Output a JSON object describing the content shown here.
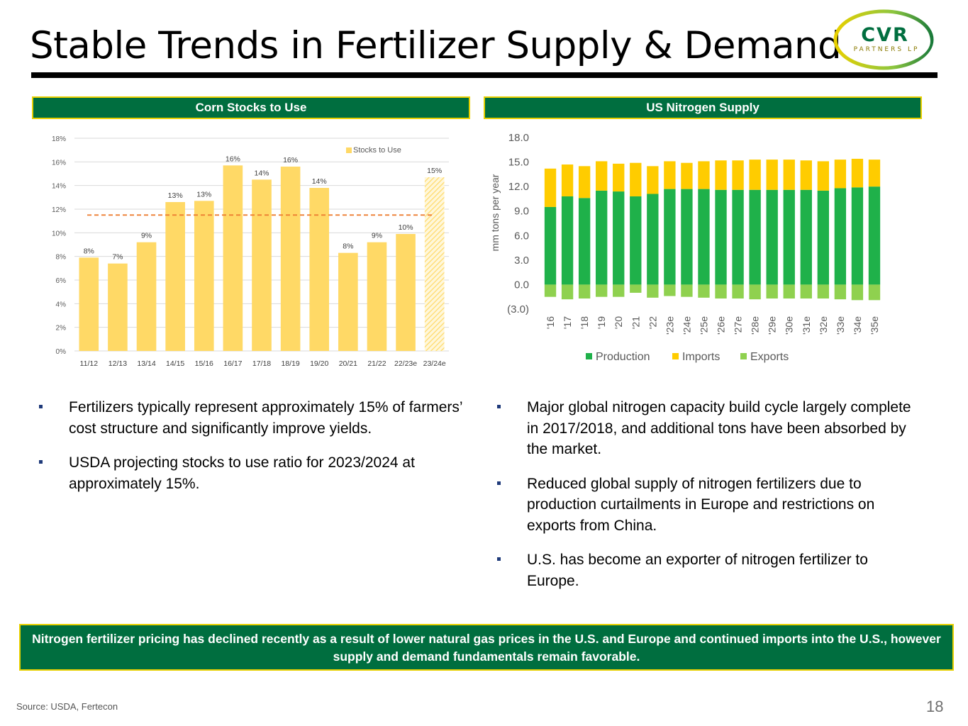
{
  "title": "Stable Trends in Fertilizer Supply & Demand",
  "logo": {
    "main": "CVR",
    "sub": "PARTNERS LP"
  },
  "left_panel": {
    "header": "Corn Stocks to Use",
    "bullets": [
      "Fertilizers typically represent approximately 15% of farmers’ cost structure and significantly improve yields.",
      "USDA projecting stocks to use ratio for 2023/2024 at approximately 15%."
    ]
  },
  "right_panel": {
    "header": "US Nitrogen Supply",
    "bullets": [
      "Major global nitrogen capacity build cycle largely complete in 2017/2018, and additional tons have been absorbed by the market.",
      "Reduced global supply of nitrogen fertilizers due to production curtailments in Europe and restrictions on exports from China.",
      "U.S. has become an exporter of nitrogen fertilizer to Europe."
    ]
  },
  "callout": "Nitrogen fertilizer pricing has declined recently as a result of lower natural gas prices in the U.S. and Europe and continued imports into the U.S., however supply and demand fundamentals remain favorable.",
  "source": "Source:  USDA, Fertecon",
  "page_number": "18",
  "colors": {
    "green": "#006e3f",
    "gold_border": "#e8d000",
    "bar_yellow": "#ffd966",
    "avg_line": "#ed7d31",
    "production": "#1fb14a",
    "imports": "#ffcc00",
    "exports": "#8fd14f"
  },
  "chart_data": [
    {
      "type": "bar",
      "categories": [
        "11/12",
        "12/13",
        "13/14",
        "14/15",
        "15/16",
        "16/17",
        "17/18",
        "18/19",
        "19/20",
        "20/21",
        "21/22",
        "22/23e",
        "23/24e"
      ],
      "series": [
        {
          "name": "Stocks to Use",
          "values": [
            7.9,
            7.4,
            9.2,
            12.6,
            12.7,
            15.7,
            14.5,
            15.6,
            13.8,
            8.3,
            9.2,
            9.9,
            14.7
          ]
        }
      ],
      "data_labels": [
        "8%",
        "7%",
        "9%",
        "13%",
        "13%",
        "16%",
        "14%",
        "16%",
        "14%",
        "8%",
        "9%",
        "10%",
        "15%"
      ],
      "reference_line": 11.5,
      "hatched_last": true,
      "yticks": [
        "0%",
        "2%",
        "4%",
        "6%",
        "8%",
        "10%",
        "12%",
        "14%",
        "16%",
        "18%"
      ],
      "ylim": [
        0,
        18
      ],
      "legend": "top-right",
      "grid": true
    },
    {
      "type": "bar",
      "stacked": true,
      "categories": [
        "'16",
        "'17",
        "'18",
        "'19",
        "'20",
        "'21",
        "'22",
        "'23e",
        "'24e",
        "'25e",
        "'26e",
        "'27e",
        "'28e",
        "'29e",
        "'30e",
        "'31e",
        "'32e",
        "'33e",
        "'34e",
        "'35e"
      ],
      "series": [
        {
          "name": "Production",
          "values": [
            9.5,
            10.8,
            10.6,
            11.5,
            11.4,
            10.8,
            11.1,
            11.7,
            11.7,
            11.7,
            11.6,
            11.6,
            11.6,
            11.6,
            11.6,
            11.6,
            11.5,
            11.8,
            11.9,
            12.0
          ]
        },
        {
          "name": "Imports",
          "values": [
            4.7,
            3.9,
            3.9,
            3.6,
            3.4,
            4.1,
            3.4,
            3.4,
            3.2,
            3.4,
            3.6,
            3.6,
            3.7,
            3.7,
            3.7,
            3.6,
            3.6,
            3.5,
            3.5,
            3.3
          ]
        },
        {
          "name": "Exports",
          "values": [
            -1.5,
            -1.8,
            -1.7,
            -1.5,
            -1.5,
            -1.0,
            -1.6,
            -1.4,
            -1.5,
            -1.6,
            -1.7,
            -1.7,
            -1.8,
            -1.7,
            -1.7,
            -1.7,
            -1.7,
            -1.8,
            -1.9,
            -1.9
          ]
        }
      ],
      "yticks": [
        "(3.0)",
        "0.0",
        "3.0",
        "6.0",
        "9.0",
        "12.0",
        "15.0",
        "18.0"
      ],
      "ylabel": "mm tons per year",
      "ylim": [
        -3,
        18
      ],
      "legend": "bottom",
      "grid": false
    }
  ]
}
